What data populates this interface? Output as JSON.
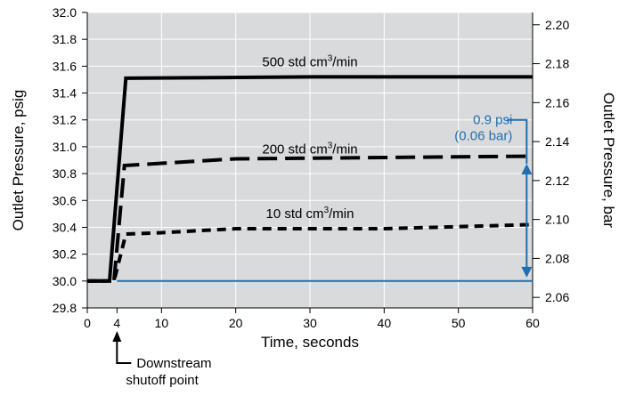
{
  "chart_data": {
    "type": "line",
    "x": {
      "label": "Time, seconds",
      "range": [
        0,
        60
      ],
      "ticks": [
        0,
        4,
        10,
        20,
        30,
        40,
        50,
        60
      ]
    },
    "y_left": {
      "label": "Outlet Pressure, psig",
      "range": [
        29.8,
        32.0
      ],
      "ticks": [
        29.8,
        30.0,
        30.2,
        30.4,
        30.6,
        30.8,
        31.0,
        31.2,
        31.4,
        31.6,
        31.8,
        32.0
      ],
      "tick_labels": [
        "29.8",
        "30.0",
        "30.2",
        "30.4",
        "30.6",
        "30.8",
        "31.0",
        "31.2",
        "31.4",
        "31.6",
        "31.8",
        "32.0"
      ]
    },
    "y_right": {
      "label": "Outlet Pressure, bar",
      "range": [
        2.0546,
        2.2063
      ],
      "ticks": [
        2.06,
        2.08,
        2.1,
        2.12,
        2.14,
        2.16,
        2.18,
        2.2
      ],
      "tick_labels": [
        "2.06",
        "2.08",
        "2.10",
        "2.12",
        "2.14",
        "2.16",
        "2.18",
        "2.20"
      ]
    },
    "series": [
      {
        "name": "500 std cm³/min",
        "style": "solid",
        "color": "#000000",
        "points": [
          [
            0,
            30.0
          ],
          [
            3.0,
            30.0
          ],
          [
            5.2,
            31.51
          ],
          [
            30,
            31.52
          ],
          [
            60,
            31.52
          ]
        ]
      },
      {
        "name": "200 std cm³/min",
        "style": "dashed",
        "color": "#000000",
        "points": [
          [
            0,
            30.0
          ],
          [
            3.0,
            30.0
          ],
          [
            3.6,
            30.0
          ],
          [
            5.0,
            30.86
          ],
          [
            8,
            30.87
          ],
          [
            20,
            30.91
          ],
          [
            40,
            30.92
          ],
          [
            60,
            30.93
          ]
        ]
      },
      {
        "name": "10 std cm³/min",
        "style": "dotted",
        "color": "#000000",
        "points": [
          [
            0,
            30.0
          ],
          [
            3.0,
            30.0
          ],
          [
            3.6,
            30.0
          ],
          [
            5.2,
            30.35
          ],
          [
            10,
            30.36
          ],
          [
            20,
            30.39
          ],
          [
            40,
            30.39
          ],
          [
            60,
            30.42
          ]
        ]
      },
      {
        "name": "",
        "style": "solid",
        "color": "#1f6fb2",
        "points": [
          [
            4,
            30.0
          ],
          [
            60,
            30.0
          ]
        ]
      }
    ],
    "series_labels": [
      {
        "text": "500 std cm",
        "sup": "3",
        "tail": "/min",
        "x": 30,
        "y": 31.6
      },
      {
        "text": "200 std cm",
        "sup": "3",
        "tail": "/min",
        "x": 30,
        "y": 30.95
      },
      {
        "text": "10 std cm",
        "sup": "3",
        "tail": "/min",
        "x": 30,
        "y": 30.47
      }
    ],
    "annotations": {
      "pressure_diff_psi": "0.9 psi",
      "pressure_diff_bar": "(0.06 bar)",
      "shutoff_line1": "Downstream",
      "shutoff_line2": "shutoff point",
      "shutoff_time": 4,
      "arrow_x": 59.2,
      "arrow_y_top": 30.9,
      "arrow_y_bottom": 30.0
    },
    "colors": {
      "plot_background": "#d9dadc",
      "grid": "#ffffff",
      "accent": "#1f6fb2",
      "series": "#000000"
    },
    "grid": true
  }
}
